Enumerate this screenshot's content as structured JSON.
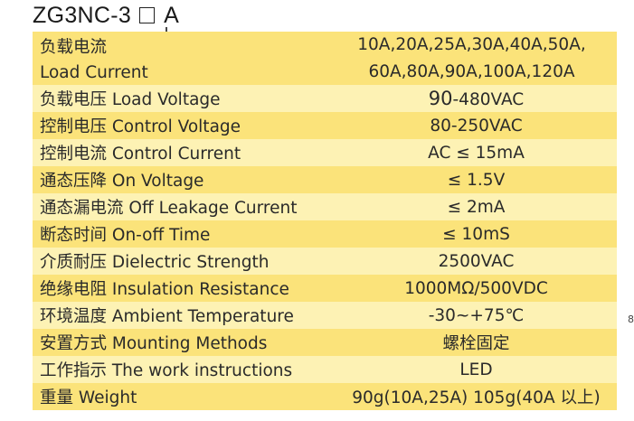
{
  "model": {
    "prefix": "ZG3NC-3",
    "suffix": "A"
  },
  "rows": [
    {
      "cn": "负载电流",
      "en": "Load Current",
      "values": [
        "10A,20A,25A,30A,40A,50A,",
        "60A,80A,90A,100A,120A"
      ]
    },
    {
      "label": "负载电压 Load Voltage",
      "value_a": "90",
      "value_b": "-480VAC"
    },
    {
      "label": "控制电压 Control Voltage",
      "value": "80-250VAC"
    },
    {
      "label": "控制电流 Control Current",
      "value": "AC ≤ 15mA"
    },
    {
      "label": "通态压降 On Voltage",
      "value": "≤ 1.5V"
    },
    {
      "label": "通态漏电流 Off Leakage Current",
      "value": "≤ 2mA"
    },
    {
      "label": "断态时间 On-off Time",
      "value": "≤ 10mS"
    },
    {
      "label": "介质耐压 Dielectric Strength",
      "value": "2500VAC"
    },
    {
      "label": "绝缘电阻 Insulation Resistance",
      "value": "1000MΩ/500VDC"
    },
    {
      "label": "环境温度 Ambient Temperature",
      "value": "-30~+75℃"
    },
    {
      "label": "安置方式 Mounting Methods",
      "value": "螺栓固定"
    },
    {
      "label": "工作指示 The work instructions",
      "value": "LED"
    },
    {
      "label": "重量 Weight",
      "value": "90g(10A,25A)  105g(40A 以上)"
    }
  ],
  "side_mark": "8",
  "colors": {
    "row_odd": "#fbe37a",
    "row_even": "#fdf2b4",
    "text": "#2a2a2a"
  }
}
